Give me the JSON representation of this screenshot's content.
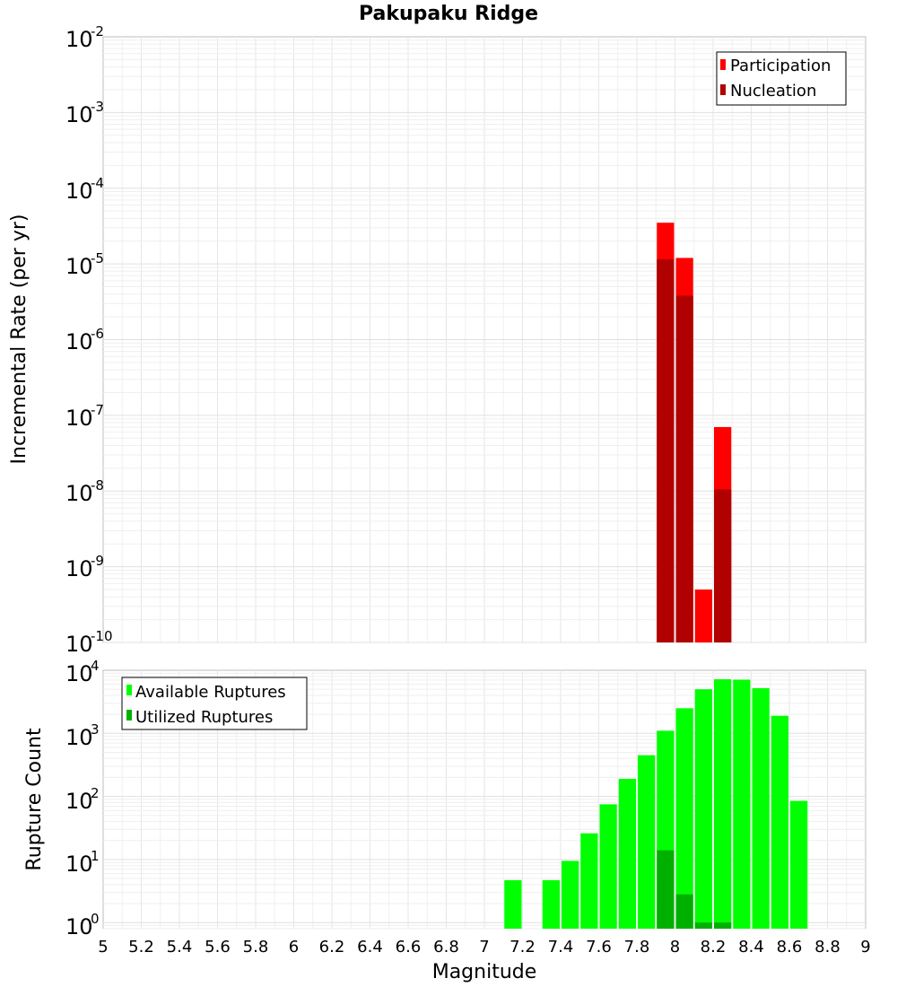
{
  "chart_data": {
    "title": "Pakupaku Ridge",
    "xlabel": "Magnitude",
    "xlim": [
      5,
      9
    ],
    "x_ticks": [
      "5",
      "5.2",
      "5.4",
      "5.6",
      "5.8",
      "6",
      "6.2",
      "6.4",
      "6.6",
      "6.8",
      "7",
      "7.2",
      "7.4",
      "7.6",
      "7.8",
      "8",
      "8.2",
      "8.4",
      "8.6",
      "8.8",
      "9"
    ],
    "panels": [
      {
        "type": "bar",
        "ylabel": "Incremental Rate (per yr)",
        "yscale": "log",
        "ylim": [
          1e-10,
          0.01
        ],
        "y_ticks": [
          {
            "base": "10",
            "exp": "-2"
          },
          {
            "base": "10",
            "exp": "-3"
          },
          {
            "base": "10",
            "exp": "-4"
          },
          {
            "base": "10",
            "exp": "-5"
          },
          {
            "base": "10",
            "exp": "-6"
          },
          {
            "base": "10",
            "exp": "-7"
          },
          {
            "base": "10",
            "exp": "-8"
          },
          {
            "base": "10",
            "exp": "-9"
          },
          {
            "base": "10",
            "exp": "-10"
          }
        ],
        "legend_position": "top-right",
        "series": [
          {
            "name": "Participation",
            "color": "#ff0000",
            "x": [
              7.95,
              8.05,
              8.15,
              8.25
            ],
            "values": [
              3.5e-05,
              1.2e-05,
              5e-10,
              7e-08
            ]
          },
          {
            "name": "Nucleation",
            "color": "#b00000",
            "x": [
              7.95,
              8.05,
              8.15,
              8.25
            ],
            "values": [
              1.15e-05,
              3.8e-06,
              1e-10,
              1.05e-08
            ]
          }
        ]
      },
      {
        "type": "bar",
        "ylabel": "Rupture Count",
        "yscale": "log",
        "ylim": [
          0.8,
          10000
        ],
        "y_ticks": [
          {
            "base": "10",
            "exp": "4"
          },
          {
            "base": "10",
            "exp": "3"
          },
          {
            "base": "10",
            "exp": "2"
          },
          {
            "base": "10",
            "exp": "1"
          },
          {
            "base": "10",
            "exp": "0"
          }
        ],
        "legend_position": "top-left",
        "series": [
          {
            "name": "Available Ruptures",
            "color": "#00ff00",
            "x": [
              7.15,
              7.35,
              7.45,
              7.55,
              7.65,
              7.75,
              7.85,
              7.95,
              8.05,
              8.15,
              8.25,
              8.35,
              8.45,
              8.55,
              8.65
            ],
            "values": [
              4.7,
              4.7,
              9.5,
              26,
              75,
              190,
              450,
              1100,
              2500,
              5000,
              7200,
              7100,
              5200,
              1900,
              85
            ]
          },
          {
            "name": "Utilized Ruptures",
            "color": "#00b000",
            "x": [
              7.95,
              8.05,
              8.15,
              8.25
            ],
            "values": [
              14,
              2.8,
              1,
              1
            ]
          }
        ]
      }
    ]
  }
}
